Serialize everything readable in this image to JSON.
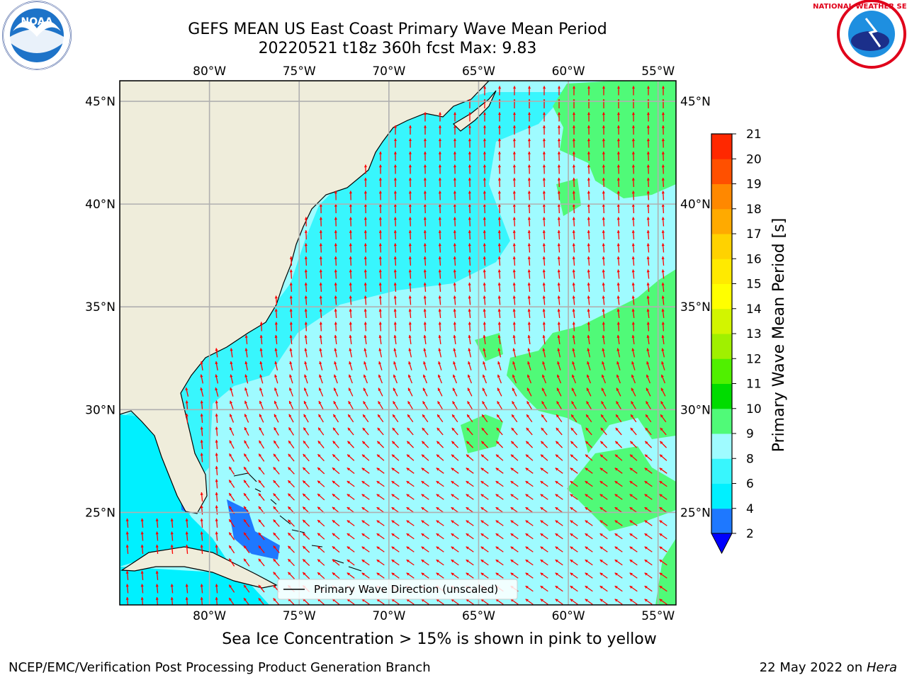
{
  "header": {
    "title_line1": "GEFS MEAN US East Coast Primary Wave Mean Period",
    "title_line2": "20220521 t18z 360h fcst   Max: 9.83"
  },
  "logos": {
    "left": "NOAA",
    "right": "NATIONAL WEATHER SERVICE"
  },
  "map": {
    "lon_range": [
      -85,
      -54
    ],
    "lat_range": [
      20.5,
      46
    ],
    "lon_ticks": [
      -80,
      -75,
      -70,
      -65,
      -60,
      -55
    ],
    "lat_ticks": [
      25,
      30,
      35,
      40,
      45
    ],
    "lon_tick_labels": [
      "80°W",
      "75°W",
      "70°W",
      "65°W",
      "60°W",
      "55°W"
    ],
    "lat_tick_labels": [
      "25°N",
      "30°N",
      "35°N",
      "40°N",
      "45°N"
    ],
    "colors": {
      "land": "#efeddb",
      "ocean_6_8": "#9ffbff",
      "ocean_4_6": "#38f6fd",
      "ocean_lowest": "#00f0ff",
      "band_8_9": "#50fa78",
      "band_2_4": "#1e78ff",
      "arrows": "#ff0000",
      "grid": "#b0b0b0"
    },
    "legend_label": "Primary Wave Direction (unscaled)"
  },
  "colorbar": {
    "label": "Primary Wave Mean Period [s]",
    "tick_labels": [
      "2",
      "4",
      "6",
      "8",
      "9",
      "10",
      "11",
      "12",
      "13",
      "14",
      "15",
      "16",
      "17",
      "18",
      "19",
      "20",
      "21"
    ],
    "colors": [
      "#1e78ff",
      "#00f0ff",
      "#38f6fd",
      "#9ffbff",
      "#50fa78",
      "#00dc00",
      "#50f000",
      "#a0f000",
      "#d2f500",
      "#ffff00",
      "#ffea00",
      "#ffd200",
      "#ffaa00",
      "#ff8800",
      "#ff5000",
      "#ff2800",
      "#ff0000"
    ],
    "under_color": "#0000ff"
  },
  "notes": {
    "ice": "Sea Ice Concentration > 15% is shown in pink to yellow",
    "footer_left": "NCEP/EMC/Verification Post Processing Product Generation Branch",
    "footer_right_date": "22 May 2022 on ",
    "footer_right_host": "Hera"
  }
}
